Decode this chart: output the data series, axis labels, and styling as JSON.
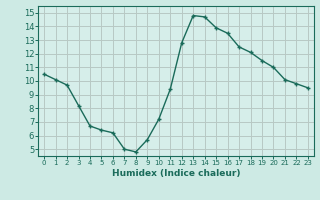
{
  "x": [
    0,
    1,
    2,
    3,
    4,
    5,
    6,
    7,
    8,
    9,
    10,
    11,
    12,
    13,
    14,
    15,
    16,
    17,
    18,
    19,
    20,
    21,
    22,
    23
  ],
  "y": [
    10.5,
    10.1,
    9.7,
    8.2,
    6.7,
    6.4,
    6.2,
    5.0,
    4.8,
    5.7,
    7.2,
    9.4,
    12.8,
    14.8,
    14.7,
    13.9,
    13.5,
    12.5,
    12.1,
    11.5,
    11.0,
    10.1,
    9.8,
    9.5
  ],
  "bg_color": "#cdeae4",
  "plot_bg_color": "#d6eeea",
  "grid_color": "#b8c8c4",
  "line_color": "#1a6b5a",
  "marker_color": "#1a6b5a",
  "xlabel": "Humidex (Indice chaleur)",
  "ylabel_ticks": [
    5,
    6,
    7,
    8,
    9,
    10,
    11,
    12,
    13,
    14,
    15
  ],
  "ylim": [
    4.5,
    15.5
  ],
  "xlim": [
    -0.5,
    23.5
  ],
  "xticks": [
    0,
    1,
    2,
    3,
    4,
    5,
    6,
    7,
    8,
    9,
    10,
    11,
    12,
    13,
    14,
    15,
    16,
    17,
    18,
    19,
    20,
    21,
    22,
    23
  ]
}
